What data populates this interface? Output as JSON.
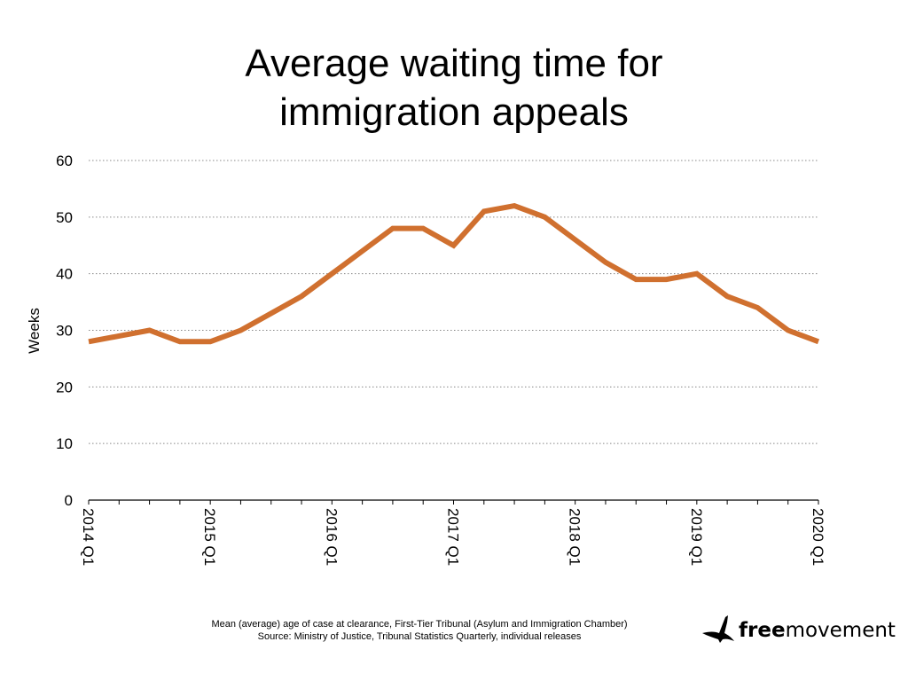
{
  "chart_data": {
    "type": "line",
    "title_lines": [
      "Average waiting time for",
      "immigration appeals"
    ],
    "ylabel": "Weeks",
    "xlabel": "",
    "ylim": [
      0,
      60
    ],
    "yticks": [
      0,
      10,
      20,
      30,
      40,
      50,
      60
    ],
    "grid": "horizontal dotted",
    "x": [
      "2014 Q1",
      "2014 Q2",
      "2014 Q3",
      "2014 Q4",
      "2015 Q1",
      "2015 Q2",
      "2015 Q3",
      "2015 Q4",
      "2016 Q1",
      "2016 Q2",
      "2016 Q3",
      "2016 Q4",
      "2017 Q1",
      "2017 Q2",
      "2017 Q3",
      "2017 Q4",
      "2018 Q1",
      "2018 Q2",
      "2018 Q3",
      "2018 Q4",
      "2019 Q1",
      "2019 Q2",
      "2019 Q3",
      "2019 Q4",
      "2020 Q1"
    ],
    "xticklabels": [
      "2014 Q1",
      "2015 Q1",
      "2016 Q1",
      "2017 Q1",
      "2018 Q1",
      "2019 Q1",
      "2020 Q1"
    ],
    "series": [
      {
        "values": [
          28,
          29,
          30,
          28,
          28,
          30,
          33,
          36,
          40,
          44,
          48,
          48,
          45,
          51,
          52,
          50,
          46,
          42,
          39,
          39,
          40,
          36,
          34,
          30,
          28
        ],
        "color": "#d0702f"
      }
    ]
  },
  "footnote": {
    "line1": "Mean (average) age of case at clearance, First-Tier Tribunal (Asylum and Immigration Chamber)",
    "line2": "Source: Ministry of Justice, Tribunal Statistics Quarterly, individual releases"
  },
  "logo": {
    "bold_text": "free",
    "regular_text": "movement",
    "icon": "bird-icon"
  }
}
